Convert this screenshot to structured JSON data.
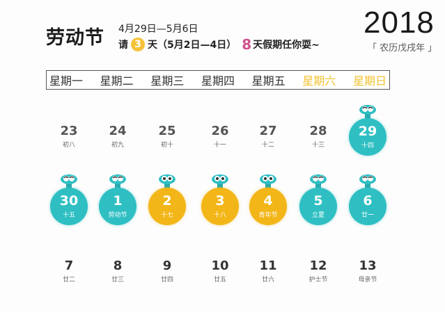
{
  "header": {
    "title": "劳动节",
    "date_range": "4月29日—5月6日",
    "leave_prefix": "请",
    "leave_days": "3",
    "leave_suffix": "天（5月2日—4日）",
    "total_days": "8",
    "total_suffix": "天假期任你耍~"
  },
  "year": {
    "number": "2018",
    "lunar": "「 农历戊戌年 」"
  },
  "weekdays": [
    {
      "label": "星期一",
      "weekend": false
    },
    {
      "label": "星期二",
      "weekend": false
    },
    {
      "label": "星期三",
      "weekend": false
    },
    {
      "label": "星期四",
      "weekend": false
    },
    {
      "label": "星期五",
      "weekend": false
    },
    {
      "label": "星期六",
      "weekend": true
    },
    {
      "label": "星期日",
      "weekend": true
    }
  ],
  "colors": {
    "holiday_teal": "#2fbfc3",
    "leave_gold": "#f3b618",
    "weekend_label": "#f2c230",
    "highlight_pink": "#d0528f"
  },
  "weeks": [
    [
      {
        "day": "23",
        "lunar": "初八",
        "type": "plain"
      },
      {
        "day": "24",
        "lunar": "初九",
        "type": "plain"
      },
      {
        "day": "25",
        "lunar": "初十",
        "type": "plain"
      },
      {
        "day": "26",
        "lunar": "十一",
        "type": "plain"
      },
      {
        "day": "27",
        "lunar": "十二",
        "type": "plain"
      },
      {
        "day": "28",
        "lunar": "十三",
        "type": "plain"
      },
      {
        "day": "29",
        "lunar": "十四",
        "type": "holiday"
      }
    ],
    [
      {
        "day": "30",
        "lunar": "十五",
        "type": "holiday"
      },
      {
        "day": "1",
        "lunar": "劳动节",
        "type": "holiday"
      },
      {
        "day": "2",
        "lunar": "十七",
        "type": "leave"
      },
      {
        "day": "3",
        "lunar": "十八",
        "type": "leave"
      },
      {
        "day": "4",
        "lunar": "青年节",
        "type": "leave"
      },
      {
        "day": "5",
        "lunar": "立夏",
        "type": "holiday"
      },
      {
        "day": "6",
        "lunar": "廿一",
        "type": "holiday"
      }
    ],
    [
      {
        "day": "7",
        "lunar": "廿二",
        "type": "plain"
      },
      {
        "day": "8",
        "lunar": "廿三",
        "type": "plain"
      },
      {
        "day": "9",
        "lunar": "廿四",
        "type": "plain"
      },
      {
        "day": "10",
        "lunar": "廿五",
        "type": "plain"
      },
      {
        "day": "11",
        "lunar": "廿六",
        "type": "plain"
      },
      {
        "day": "12",
        "lunar": "护士节",
        "type": "plain"
      },
      {
        "day": "13",
        "lunar": "母亲节",
        "type": "plain"
      }
    ]
  ]
}
